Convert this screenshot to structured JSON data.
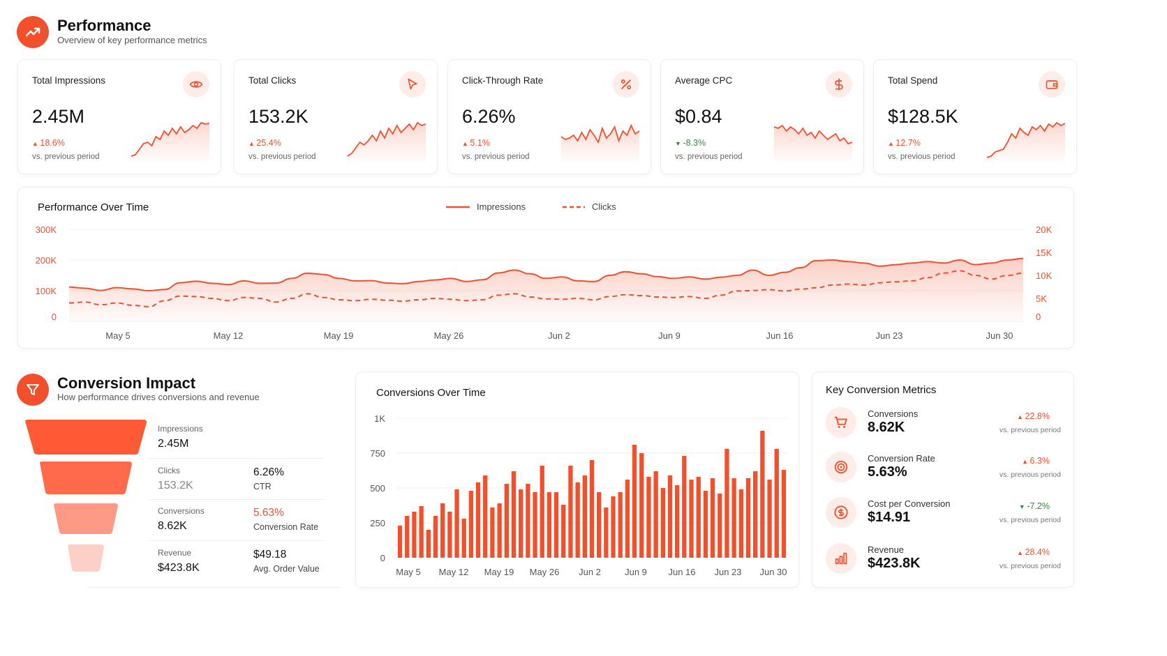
{
  "header": {
    "title": "Performance",
    "subtitle": "Overview of key performance metrics",
    "icon": "trend-up-icon",
    "accent": "#f24f2c"
  },
  "kpis": [
    {
      "label": "Total Impressions",
      "value": "2.45M",
      "delta": "18.6%",
      "direction": "up",
      "compare": "vs. previous period",
      "icon": "eye-icon"
    },
    {
      "label": "Total Clicks",
      "value": "153.2K",
      "delta": "25.4%",
      "direction": "up",
      "compare": "vs. previous period",
      "icon": "cursor-icon"
    },
    {
      "label": "Click-Through Rate",
      "value": "6.26%",
      "delta": "5.1%",
      "direction": "up",
      "compare": "vs. previous period",
      "icon": "percent-icon"
    },
    {
      "label": "Average CPC",
      "value": "$0.84",
      "delta": "-8.3%",
      "direction": "down",
      "compare": "vs. previous period",
      "icon": "dollar-icon"
    },
    {
      "label": "Total Spend",
      "value": "$128.5K",
      "delta": "12.7%",
      "direction": "up",
      "compare": "vs. previous period",
      "icon": "wallet-icon"
    }
  ],
  "perf_chart": {
    "title": "Performance Over Time",
    "legend": {
      "impressions": "Impressions",
      "clicks": "Clicks"
    },
    "y_left_ticks": [
      "300K",
      "200K",
      "100K",
      "0"
    ],
    "y_right_ticks": [
      "20K",
      "15K",
      "10K",
      "5K",
      "0"
    ],
    "x_ticks": [
      "May 5",
      "May 12",
      "May 19",
      "May 26",
      "Jun 2",
      "Jun 9",
      "Jun 16",
      "Jun 23",
      "Jun 30"
    ]
  },
  "conversion": {
    "title": "Conversion Impact",
    "subtitle": "How performance drives conversions and revenue",
    "icon": "funnel-icon",
    "funnel": [
      {
        "label": "Impressions",
        "value": "2.45M",
        "metric_value": "",
        "metric_label": ""
      },
      {
        "label": "Clicks",
        "value": "153.2K",
        "metric_value": "6.26%",
        "metric_label": "CTR"
      },
      {
        "label": "Conversions",
        "value": "8.62K",
        "metric_value": "5.63%",
        "metric_label": "Conversion Rate"
      },
      {
        "label": "Revenue",
        "value": "$423.8K",
        "metric_value": "$49.18",
        "metric_label": "Avg. Order Value"
      }
    ]
  },
  "conv_chart": {
    "title": "Conversions Over Time",
    "y_ticks": [
      "1K",
      "750",
      "500",
      "250",
      "0"
    ],
    "x_ticks": [
      "May 5",
      "May 12",
      "May 19",
      "May 26",
      "Jun 2",
      "Jun 9",
      "Jun 16",
      "Jun 23",
      "Jun 30"
    ]
  },
  "key_metrics": {
    "title": "Key Conversion Metrics",
    "items": [
      {
        "label": "Conversions",
        "value": "8.62K",
        "delta": "22.8%",
        "direction": "up",
        "compare": "vs. previous period",
        "icon": "cart-icon"
      },
      {
        "label": "Conversion Rate",
        "value": "5.63%",
        "delta": "6.3%",
        "direction": "up",
        "compare": "vs. previous period",
        "icon": "target-icon"
      },
      {
        "label": "Cost per Conversion",
        "value": "$14.91",
        "delta": "-7.2%",
        "direction": "down",
        "compare": "vs. previous period",
        "icon": "dollar-circle-icon"
      },
      {
        "label": "Revenue",
        "value": "$423.8K",
        "delta": "28.4%",
        "direction": "up",
        "compare": "vs. previous period",
        "icon": "bar-chart-icon"
      }
    ]
  },
  "chart_data": [
    {
      "type": "line",
      "title": "Performance Over Time",
      "x_range": [
        "May 1",
        "Jul 2"
      ],
      "y_left_range": [
        0,
        300000
      ],
      "y_right_range": [
        0,
        20000
      ],
      "series": [
        {
          "name": "Impressions",
          "axis": "left",
          "style": "solid",
          "values": [
            112000,
            108000,
            101000,
            110000,
            106000,
            100000,
            104000,
            126000,
            131000,
            124000,
            120000,
            132000,
            124000,
            125000,
            140000,
            157000,
            153000,
            140000,
            132000,
            133000,
            125000,
            123000,
            130000,
            135000,
            140000,
            130000,
            136000,
            158000,
            167000,
            155000,
            140000,
            145000,
            132000,
            130000,
            150000,
            162000,
            155000,
            146000,
            140000,
            145000,
            138000,
            144000,
            150000,
            167000,
            150000,
            160000,
            175000,
            198000,
            200000,
            195000,
            190000,
            180000,
            185000,
            190000,
            195000,
            190000,
            200000,
            185000,
            190000,
            200000,
            205000
          ]
        },
        {
          "name": "Clicks",
          "axis": "right",
          "style": "dashed",
          "values": [
            4000,
            4200,
            3600,
            4000,
            3500,
            3200,
            4500,
            5500,
            5400,
            5000,
            4500,
            5200,
            5000,
            4200,
            5000,
            6000,
            5200,
            4700,
            4500,
            4800,
            4600,
            4400,
            4700,
            5000,
            4800,
            4500,
            4700,
            5700,
            6000,
            5300,
            4900,
            4800,
            5000,
            4700,
            5400,
            5800,
            5600,
            5300,
            5200,
            5400,
            5000,
            5700,
            6600,
            6700,
            6900,
            6600,
            7000,
            7300,
            7900,
            8100,
            7900,
            8400,
            8600,
            8800,
            9500,
            10500,
            11000,
            10000,
            9200,
            10000,
            10500
          ]
        }
      ]
    },
    {
      "type": "bar",
      "title": "Conversions Over Time",
      "x_range": [
        "May 2",
        "Jul 1"
      ],
      "y_range": [
        0,
        1000
      ],
      "values": [
        230,
        300,
        330,
        370,
        200,
        300,
        390,
        330,
        490,
        280,
        480,
        540,
        590,
        360,
        390,
        530,
        620,
        490,
        530,
        470,
        660,
        470,
        470,
        380,
        660,
        540,
        590,
        700,
        470,
        360,
        440,
        470,
        560,
        810,
        750,
        580,
        620,
        500,
        590,
        520,
        730,
        560,
        580,
        480,
        570,
        460,
        780,
        570,
        490,
        570,
        620,
        910,
        560,
        780,
        630
      ]
    }
  ]
}
